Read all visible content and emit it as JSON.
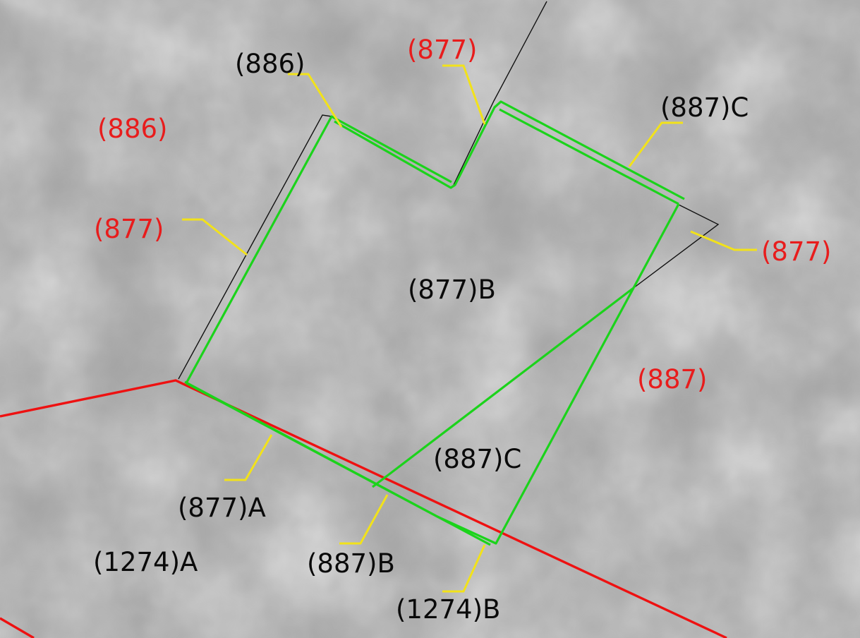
{
  "colors": {
    "background": "#a3a3a3",
    "proposed_boundary": "#1bd31b",
    "existing_boundary": "#ee1111",
    "reference_line": "#111111",
    "leader": "#f2e21a",
    "existing_label": "#e81c1c",
    "proposed_label": "#0a0a0a"
  },
  "labels": {
    "p886_top": "(886)",
    "p877_top": "(877)",
    "p887c_top": "(887)C",
    "p886_left": "(886)",
    "p877_left": "(877)",
    "p877_right": "(877)",
    "p877b_center": "(877)B",
    "p887_right": "(887)",
    "p887c_center": "(887)C",
    "p877a": "(877)A",
    "p1274a": "(1274)A",
    "p887b": "(887)B",
    "p1274b": "(1274)B"
  }
}
